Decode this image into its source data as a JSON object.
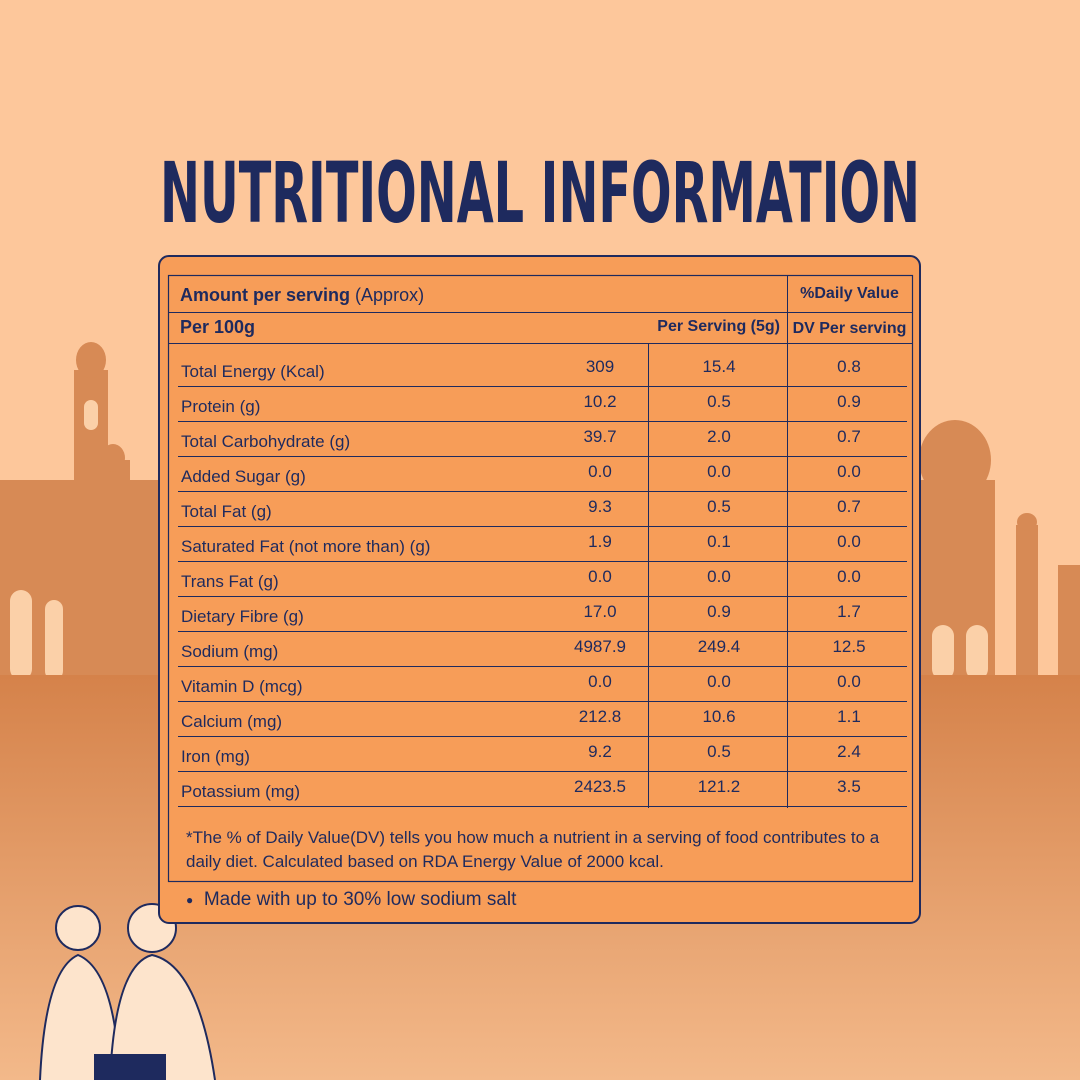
{
  "title": "NUTRITIONAL INFORMATION",
  "header": {
    "amount_label": "Amount per serving",
    "amount_note": "(Approx)",
    "daily_value": "%Daily Value",
    "per_100g": "Per 100g",
    "per_serving": "Per Serving (5g)",
    "dv_per_serving": "DV Per serving"
  },
  "table": {
    "rows": [
      [
        "Total Energy (Kcal)",
        "309",
        "15.4",
        "0.8"
      ],
      [
        "Protein (g)",
        "10.2",
        "0.5",
        "0.9"
      ],
      [
        "Total Carbohydrate (g)",
        "39.7",
        "2.0",
        "0.7"
      ],
      [
        "Added Sugar (g)",
        "0.0",
        "0.0",
        "0.0"
      ],
      [
        "Total Fat (g)",
        "9.3",
        "0.5",
        "0.7"
      ],
      [
        "Saturated Fat (not more than) (g)",
        "1.9",
        "0.1",
        "0.0"
      ],
      [
        "Trans Fat (g)",
        "0.0",
        "0.0",
        "0.0"
      ],
      [
        "Dietary Fibre (g)",
        "17.0",
        "0.9",
        "1.7"
      ],
      [
        "Sodium (mg)",
        "4987.9",
        "249.4",
        "12.5"
      ],
      [
        "Vitamin D (mcg)",
        "0.0",
        "0.0",
        "0.0"
      ],
      [
        "Calcium (mg)",
        "212.8",
        "10.6",
        "1.1"
      ],
      [
        "Iron (mg)",
        "9.2",
        "0.5",
        "2.4"
      ],
      [
        "Potassium (mg)",
        "2423.5",
        "121.2",
        "3.5"
      ]
    ]
  },
  "footnote": "*The % of Daily Value(DV) tells you how much a nutrient in a serving of food contributes to a daily diet. Calculated based on RDA Energy Value of 2000 kcal.",
  "note": "Made with up to 30% low sodium salt"
}
